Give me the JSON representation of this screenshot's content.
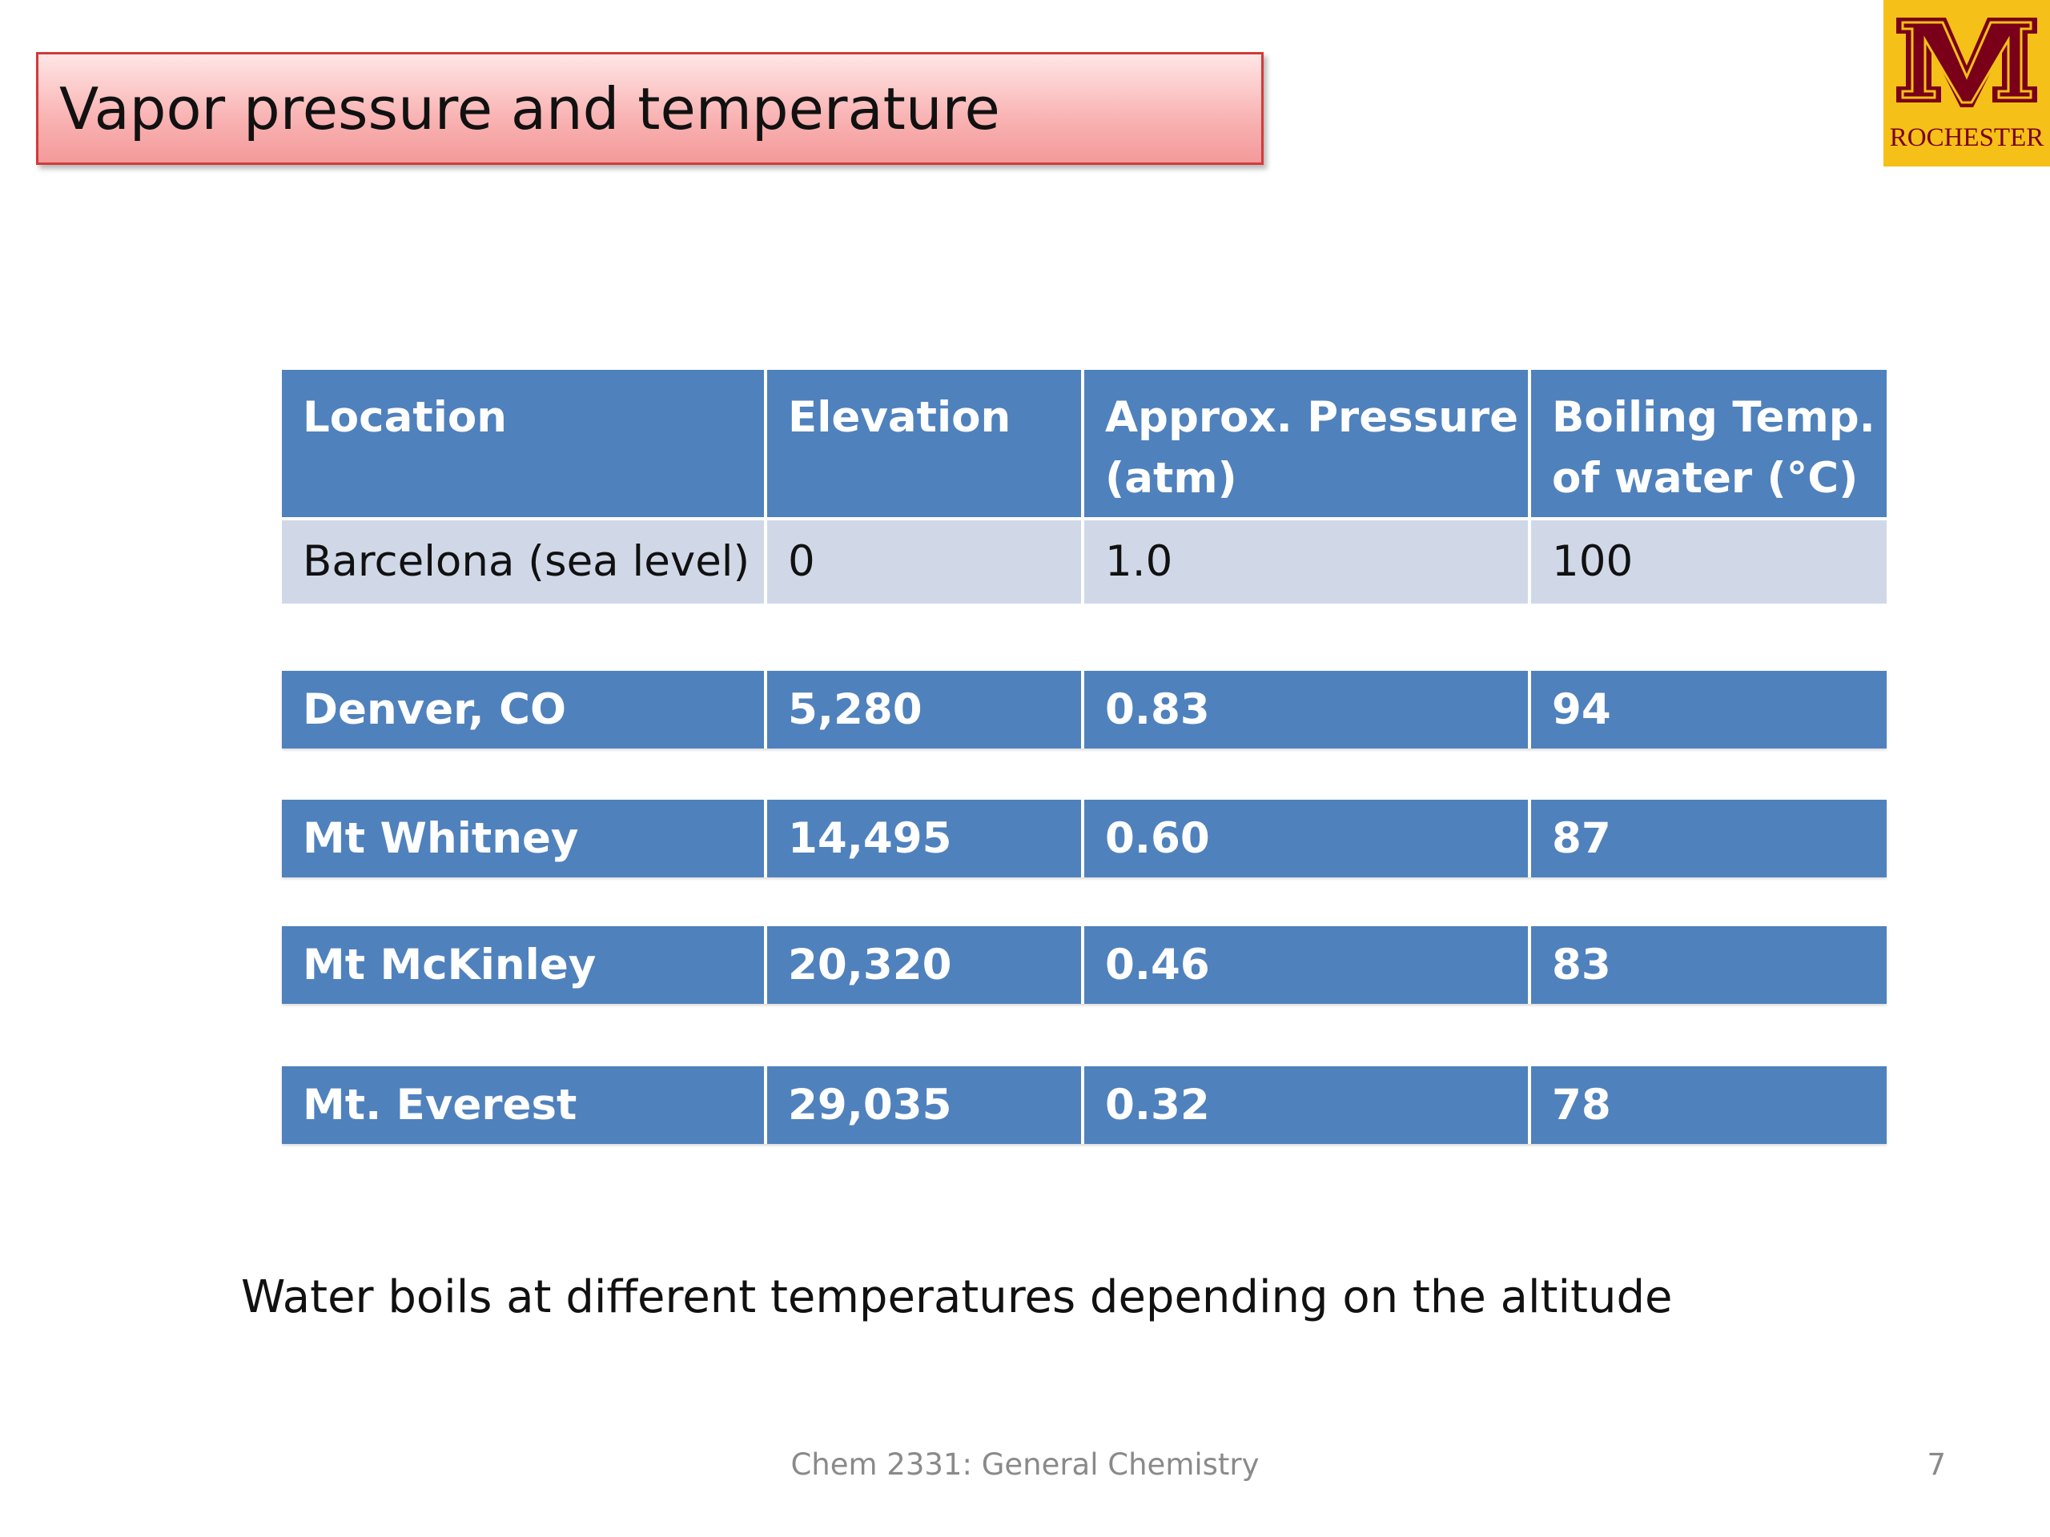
{
  "slide": {
    "title": "Vapor pressure and temperature",
    "caption": "Water boils at different temperatures depending on the altitude",
    "footer": "Chem 2331: General Chemistry",
    "page_number": "7"
  },
  "logo": {
    "icon": "university-m-logo",
    "text": "ROCHESTER",
    "colors": {
      "background": "#f5c017",
      "maroon": "#7a0019"
    }
  },
  "table": {
    "headers": [
      "Location",
      "Elevation",
      "Approx. Pressure (atm)",
      "Boiling Temp. of water (°C)"
    ],
    "rows": [
      [
        "Barcelona (sea level)",
        "0",
        "1.0",
        "100"
      ],
      [
        "Denver, CO",
        "5,280",
        "0.83",
        "94"
      ],
      [
        "Mt Whitney",
        "14,495",
        "0.60",
        "87"
      ],
      [
        "Mt McKinley",
        "20,320",
        "0.46",
        "83"
      ],
      [
        "Mt. Everest",
        "29,035",
        "0.32",
        "78"
      ]
    ]
  },
  "colors": {
    "table_blue": "#4f81bd",
    "table_light": "#d0d8e8",
    "title_border": "#d33a3a",
    "title_fill": "#f9b2b2"
  }
}
